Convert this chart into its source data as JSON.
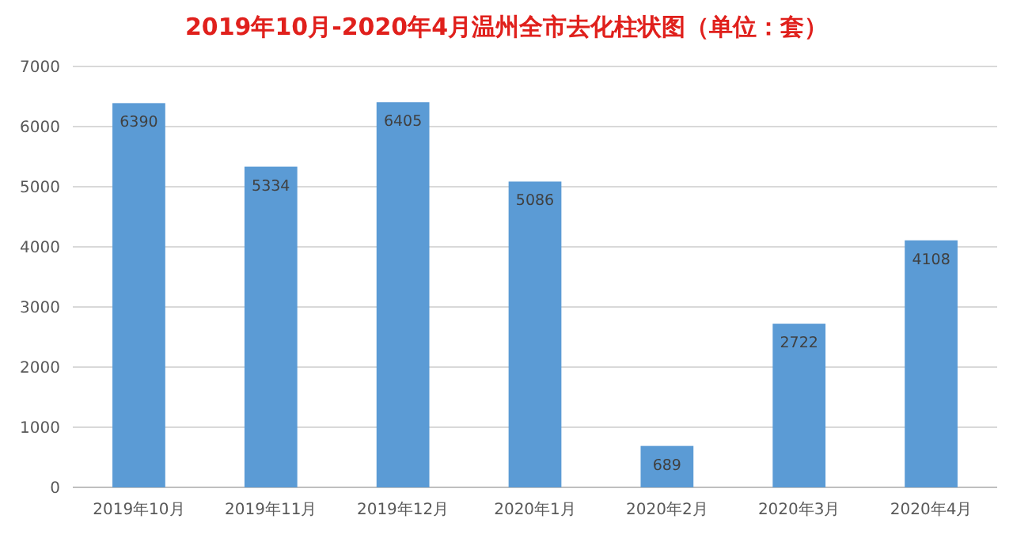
{
  "chart_data": {
    "type": "bar",
    "title": "2019年10月-2020年4月温州全市去化柱状图（单位：套）",
    "categories": [
      "2019年10月",
      "2019年11月",
      "2019年12月",
      "2020年1月",
      "2020年2月",
      "2020年3月",
      "2020年4月"
    ],
    "values": [
      6390,
      5334,
      6405,
      5086,
      689,
      2722,
      4108
    ],
    "color": "#5b9bd5",
    "ylim": [
      0,
      7000
    ],
    "yticks": [
      0,
      1000,
      2000,
      3000,
      4000,
      5000,
      6000,
      7000
    ],
    "grid": "y",
    "data_labels": true
  }
}
